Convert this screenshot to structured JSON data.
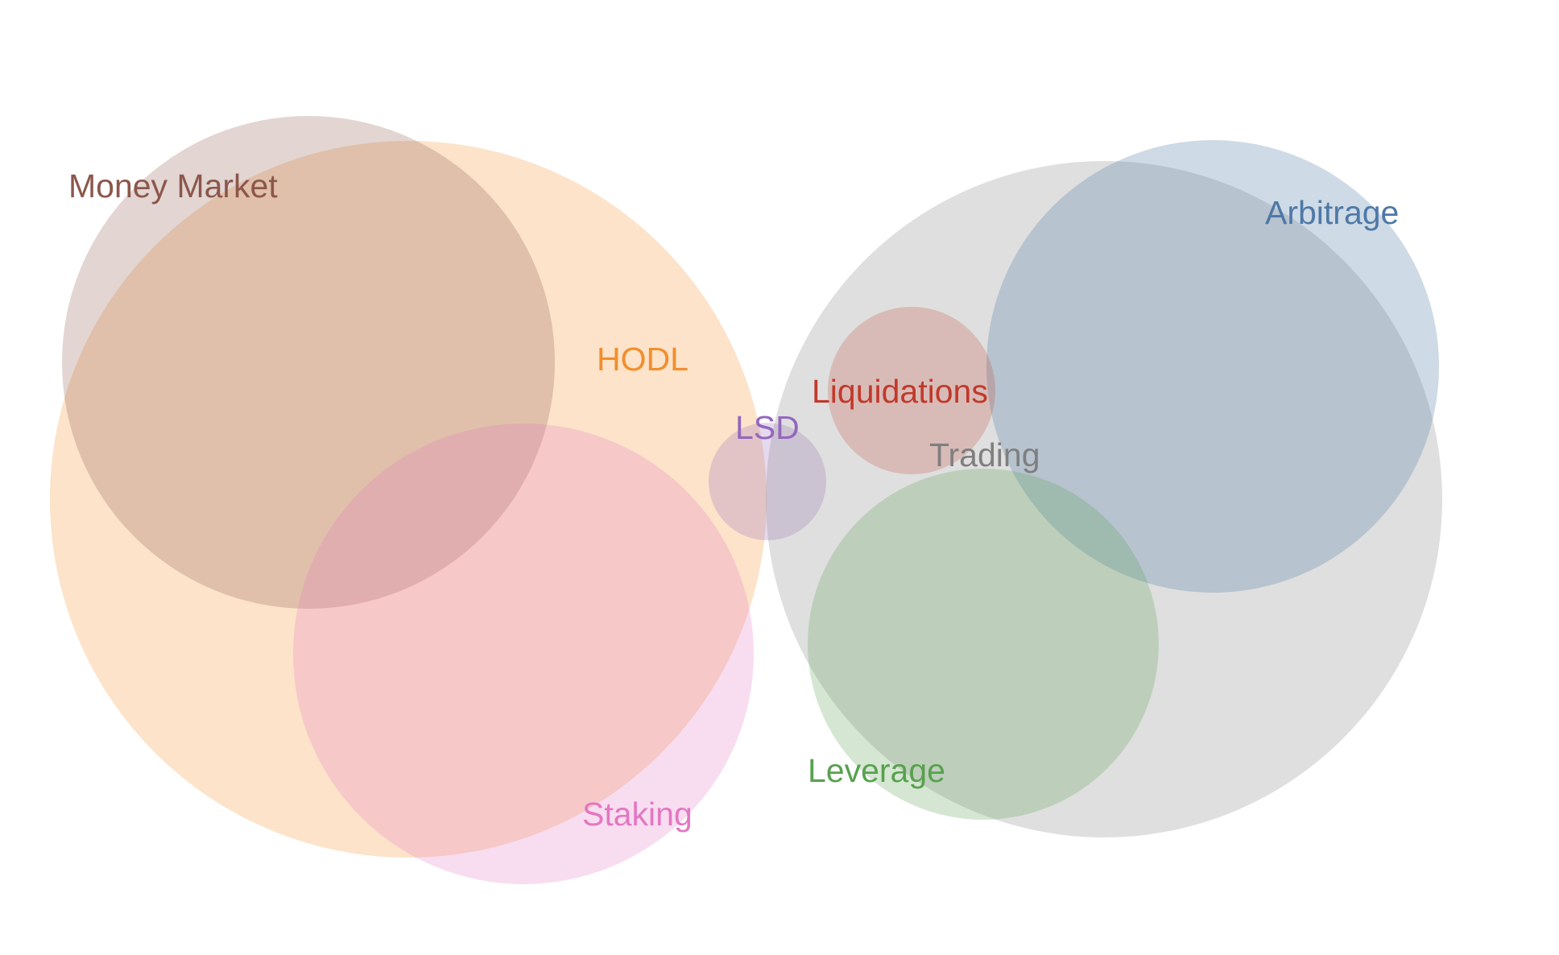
{
  "diagram": {
    "type": "euler",
    "sets": [
      {
        "id": "hodl",
        "label": "HODL",
        "color": "#f28e2b",
        "opacity": 0.25,
        "label_color": "#f28e2b"
      },
      {
        "id": "money-market",
        "label": "Money Market",
        "color": "#8c564b",
        "opacity": 0.25,
        "label_color": "#8c564b"
      },
      {
        "id": "staking",
        "label": "Staking",
        "color": "#e377c2",
        "opacity": 0.25,
        "label_color": "#e377c2"
      },
      {
        "id": "lsd",
        "label": "LSD",
        "color": "#9467bd",
        "opacity": 0.25,
        "label_color": "#9467bd"
      },
      {
        "id": "trading",
        "label": "Trading",
        "color": "#7f7f7f",
        "opacity": 0.25,
        "label_color": "#7f7f7f"
      },
      {
        "id": "arbitrage",
        "label": "Arbitrage",
        "color": "#4e79a7",
        "opacity": 0.28,
        "label_color": "#4e79a7"
      },
      {
        "id": "liquidations",
        "label": "Liquidations",
        "color": "#c0392b",
        "opacity": 0.22,
        "label_color": "#c0392b"
      },
      {
        "id": "leverage",
        "label": "Leverage",
        "color": "#59a14f",
        "opacity": 0.25,
        "label_color": "#59a14f"
      }
    ]
  }
}
